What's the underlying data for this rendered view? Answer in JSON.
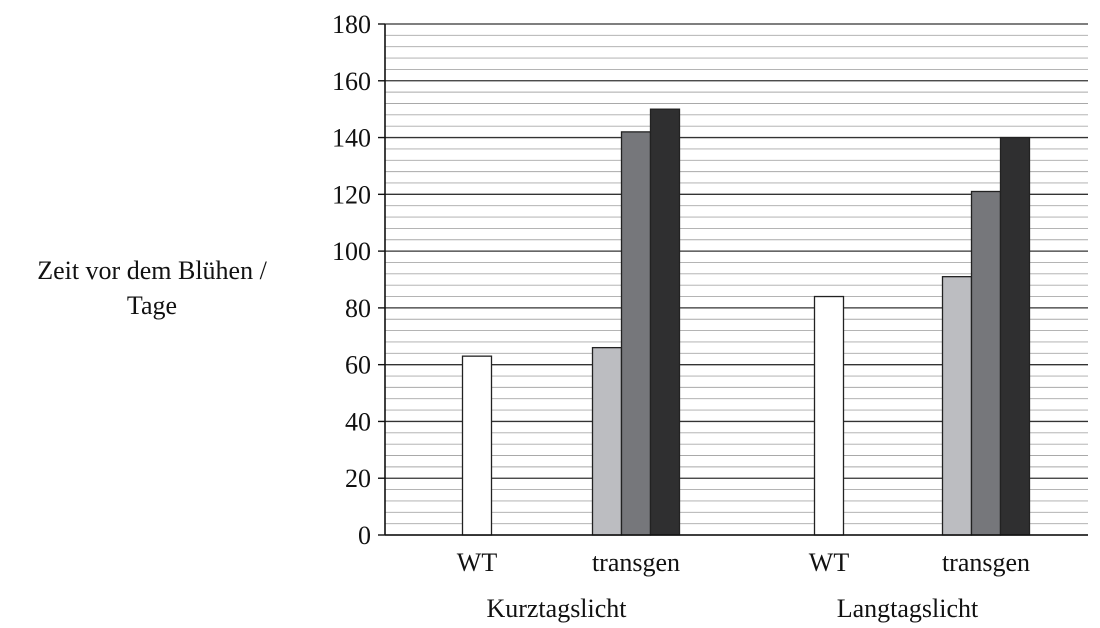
{
  "chart_data": {
    "type": "bar",
    "ylabel": [
      "Zeit vor dem Blühen /",
      "Tage"
    ],
    "ylim": [
      0,
      180
    ],
    "y_major_ticks": [
      0,
      20,
      40,
      60,
      80,
      100,
      120,
      140,
      160,
      180
    ],
    "y_minor_step": 4,
    "grid": "horizontal",
    "legend": "none",
    "groups": [
      {
        "label": "Kurztagslicht",
        "categories": [
          {
            "label": "WT",
            "bars": [
              63
            ]
          },
          {
            "label": "transgen",
            "bars": [
              66,
              142,
              150
            ]
          }
        ]
      },
      {
        "label": "Langtagslicht",
        "categories": [
          {
            "label": "WT",
            "bars": [
              84
            ]
          },
          {
            "label": "transgen",
            "bars": [
              91,
              121,
              140
            ]
          }
        ]
      }
    ],
    "bar_colors_single": "#ffffff",
    "bar_colors_triple": [
      "#bcbdc1",
      "#76777b",
      "#2f2f30"
    ]
  }
}
